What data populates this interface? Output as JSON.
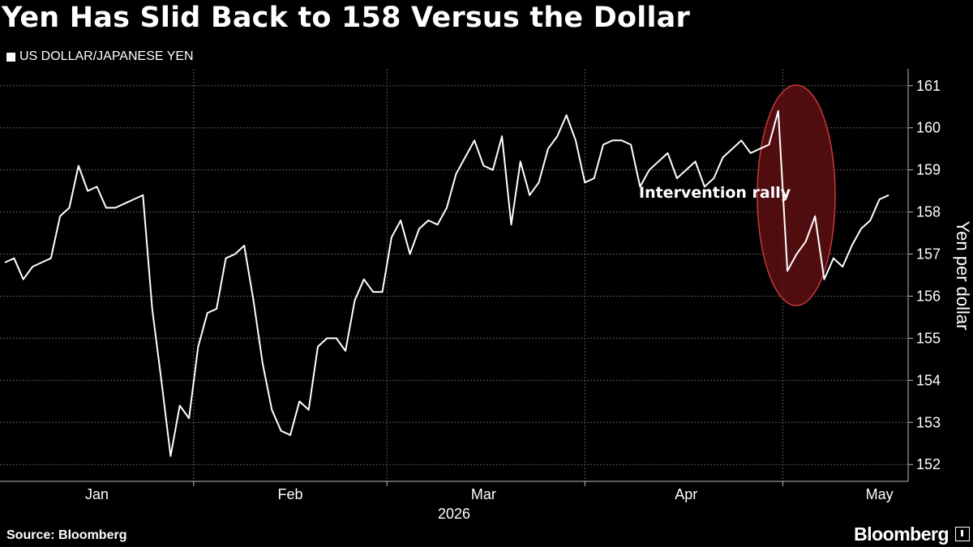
{
  "header": {
    "title": "Yen Has Slid Back to 158 Versus the Dollar"
  },
  "footer": {
    "source": "Source: Bloomberg",
    "brand": "Bloomberg"
  },
  "chart_data": {
    "type": "line",
    "title": "Yen Has Slid Back to 158 Versus the Dollar",
    "ylabel": "Yen per dollar",
    "xlabel": "2026",
    "legend": "top-left",
    "grid": true,
    "ylim": [
      151.6,
      161.4
    ],
    "yticks": [
      152,
      153,
      154,
      155,
      156,
      157,
      158,
      159,
      160,
      161
    ],
    "xticks": [
      "Jan",
      "Feb",
      "Mar",
      "Apr",
      "May"
    ],
    "xtick_day_index": [
      10,
      31,
      52,
      74,
      95
    ],
    "annotation": {
      "text": "Intervention rally"
    },
    "series": [
      {
        "name": "US DOLLAR/JAPANESE YEN",
        "color": "#ffffff",
        "values": [
          156.8,
          156.9,
          156.4,
          156.7,
          156.8,
          156.9,
          157.9,
          158.1,
          159.1,
          158.5,
          158.6,
          158.1,
          158.1,
          158.2,
          158.3,
          158.4,
          155.7,
          154.0,
          152.2,
          153.4,
          153.1,
          154.8,
          155.6,
          155.7,
          156.9,
          157.0,
          157.2,
          155.9,
          154.4,
          153.3,
          152.8,
          152.7,
          153.5,
          153.3,
          154.8,
          155.0,
          155.0,
          154.7,
          155.9,
          156.4,
          156.1,
          156.1,
          157.4,
          157.8,
          157.0,
          157.6,
          157.8,
          157.7,
          158.1,
          158.9,
          159.3,
          159.7,
          159.1,
          159.0,
          159.8,
          157.7,
          159.2,
          158.4,
          158.7,
          159.5,
          159.8,
          160.3,
          159.7,
          158.7,
          158.8,
          159.6,
          159.7,
          159.7,
          159.6,
          158.6,
          159.0,
          159.2,
          159.4,
          158.8,
          159.0,
          159.2,
          158.6,
          158.8,
          159.3,
          159.5,
          159.7,
          159.4,
          159.5,
          159.6,
          160.4,
          156.6,
          157.0,
          157.3,
          157.9,
          156.4,
          156.9,
          156.7,
          157.2,
          157.6,
          157.8,
          158.3,
          158.4
        ]
      }
    ]
  }
}
